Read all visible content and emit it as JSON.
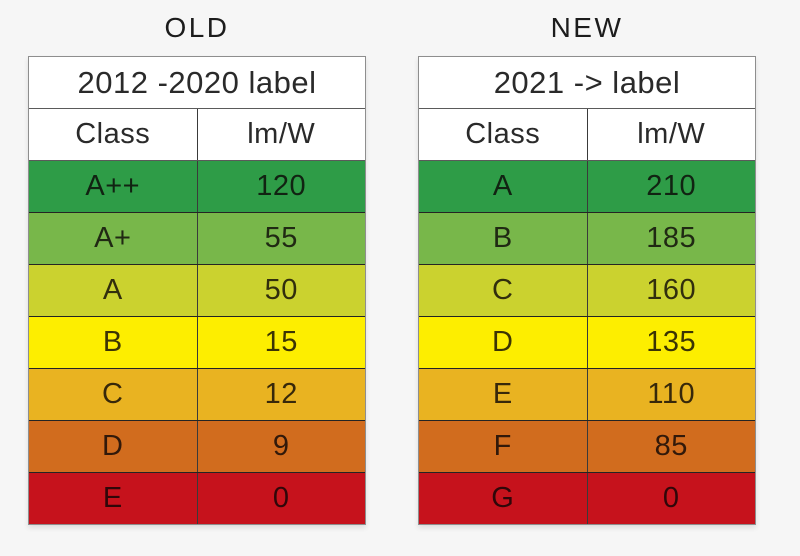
{
  "colors": {
    "page_background": "#f6f6f6",
    "grade_dark_green": "#2e9c47",
    "grade_mid_green": "#78b74a",
    "grade_yellow_green": "#cbd22f",
    "grade_yellow": "#fdee00",
    "grade_amber": "#e9b321",
    "grade_orange": "#d16c1e",
    "grade_red": "#c6121c"
  },
  "tables": [
    {
      "title": "OLD",
      "header": "2012 -2020 label",
      "columns": [
        "Class",
        "lm/W"
      ],
      "rows": [
        {
          "class": "A++",
          "value": "120",
          "color": "#2e9c47"
        },
        {
          "class": "A+",
          "value": "55",
          "color": "#78b74a"
        },
        {
          "class": "A",
          "value": "50",
          "color": "#cbd22f"
        },
        {
          "class": "B",
          "value": "15",
          "color": "#fdee00"
        },
        {
          "class": "C",
          "value": "12",
          "color": "#e9b321"
        },
        {
          "class": "D",
          "value": "9",
          "color": "#d16c1e"
        },
        {
          "class": "E",
          "value": "0",
          "color": "#c6121c"
        }
      ]
    },
    {
      "title": "NEW",
      "header": "2021 -> label",
      "columns": [
        "Class",
        "lm/W"
      ],
      "rows": [
        {
          "class": "A",
          "value": "210",
          "color": "#2e9c47"
        },
        {
          "class": "B",
          "value": "185",
          "color": "#78b74a"
        },
        {
          "class": "C",
          "value": "160",
          "color": "#cbd22f"
        },
        {
          "class": "D",
          "value": "135",
          "color": "#fdee00"
        },
        {
          "class": "E",
          "value": "110",
          "color": "#e9b321"
        },
        {
          "class": "F",
          "value": "85",
          "color": "#d16c1e"
        },
        {
          "class": "G",
          "value": "0",
          "color": "#c6121c"
        }
      ]
    }
  ],
  "chart_data": [
    {
      "type": "table",
      "title": "OLD",
      "header": "2012 -2020 label",
      "columns": [
        "Class",
        "lm/W"
      ],
      "rows": [
        [
          "A++",
          120
        ],
        [
          "A+",
          55
        ],
        [
          "A",
          50
        ],
        [
          "B",
          15
        ],
        [
          "C",
          12
        ],
        [
          "D",
          9
        ],
        [
          "E",
          0
        ]
      ],
      "row_colors": [
        "#2e9c47",
        "#78b74a",
        "#cbd22f",
        "#fdee00",
        "#e9b321",
        "#d16c1e",
        "#c6121c"
      ]
    },
    {
      "type": "table",
      "title": "NEW",
      "header": "2021 -> label",
      "columns": [
        "Class",
        "lm/W"
      ],
      "rows": [
        [
          "A",
          210
        ],
        [
          "B",
          185
        ],
        [
          "C",
          160
        ],
        [
          "D",
          135
        ],
        [
          "E",
          110
        ],
        [
          "F",
          85
        ],
        [
          "G",
          0
        ]
      ],
      "row_colors": [
        "#2e9c47",
        "#78b74a",
        "#cbd22f",
        "#fdee00",
        "#e9b321",
        "#d16c1e",
        "#c6121c"
      ]
    }
  ]
}
